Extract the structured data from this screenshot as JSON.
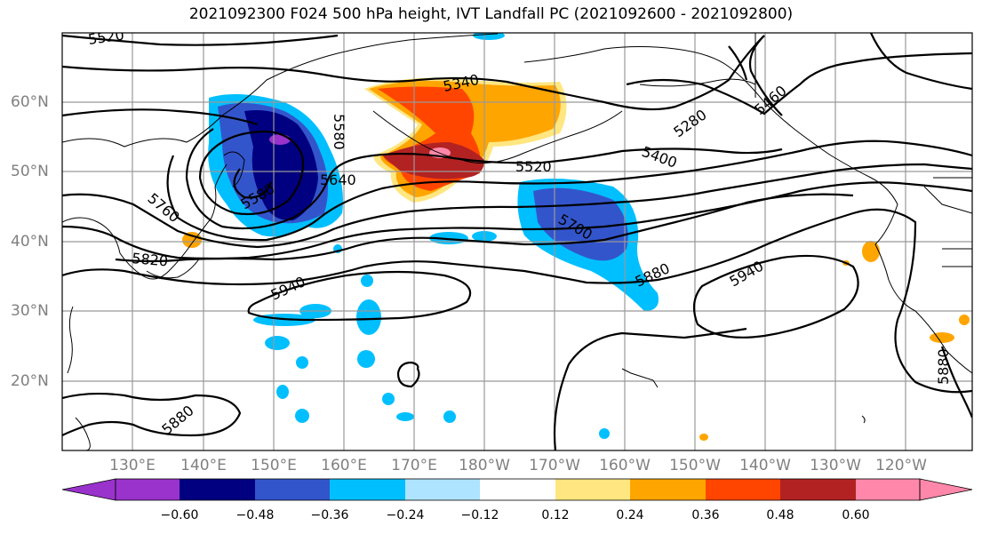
{
  "title": "2021092300 F024 500 hPa height, IVT Landfall PC (2021092600 - 2021092800)",
  "lat_labels": [
    "60°N",
    "50°N",
    "40°N",
    "30°N",
    "20°N"
  ],
  "lon_labels": [
    "130°E",
    "140°E",
    "150°E",
    "160°E",
    "170°E",
    "180°W",
    "170°W",
    "160°W",
    "150°W",
    "140°W",
    "130°W",
    "120°W"
  ],
  "contour_labels": [
    "5520",
    "5340",
    "5280",
    "5400",
    "5460",
    "5520",
    "5580",
    "5640",
    "5580",
    "5760",
    "5700",
    "5820",
    "5880",
    "5940",
    "5940",
    "5880",
    "5880"
  ],
  "colorbar": {
    "ticks": [
      "−0.60",
      "−0.48",
      "−0.36",
      "−0.24",
      "−0.12",
      "0.12",
      "0.24",
      "0.36",
      "0.48",
      "0.60"
    ],
    "colors": [
      "#9933cc",
      "#000080",
      "#3355cc",
      "#00bfff",
      "#aee4ff",
      "#ffffff",
      "#ffe680",
      "#ffa500",
      "#ff4500",
      "#b22222",
      "#ff88aa"
    ]
  }
}
